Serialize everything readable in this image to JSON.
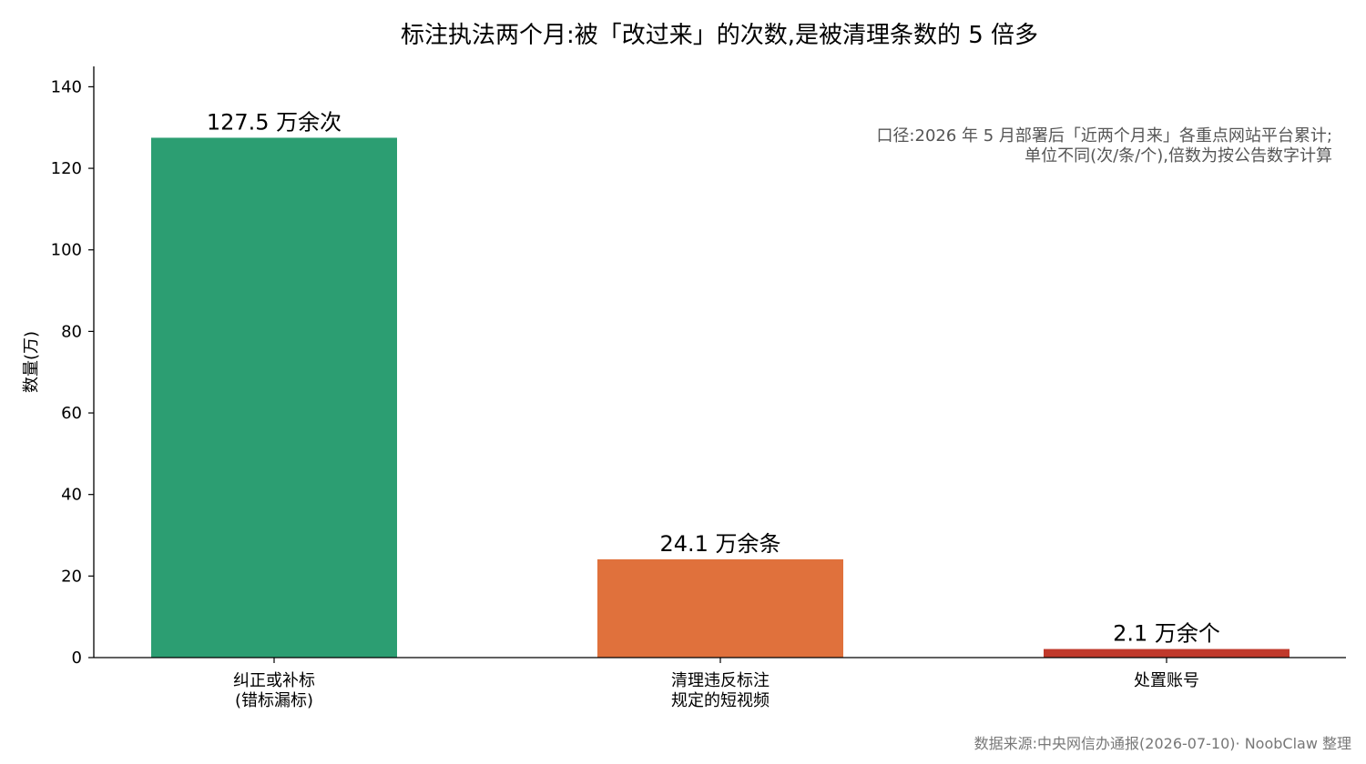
{
  "chart_data": {
    "type": "bar",
    "title": "标注执法两个月:被「改过来」的次数,是被清理条数的 5 倍多",
    "xlabel": "",
    "ylabel": "数量(万)",
    "ylim": [
      0,
      145
    ],
    "yticks": [
      0,
      20,
      40,
      60,
      80,
      100,
      120,
      140
    ],
    "grid": false,
    "categories": [
      [
        "纠正或补标",
        "(错标漏标)"
      ],
      [
        "清理违反标注",
        "规定的短视频"
      ],
      [
        "处置账号"
      ]
    ],
    "values": [
      127.5,
      24.1,
      2.1
    ],
    "data_labels": [
      "127.5 万余次",
      "24.1 万余条",
      "2.1 万余个"
    ],
    "colors": [
      "#2c9e72",
      "#e0713c",
      "#c0392b"
    ],
    "annotation": [
      "口径:2026 年 5 月部署后「近两个月来」各重点网站平台累计;",
      "单位不同(次/条/个),倍数为按公告数字计算"
    ],
    "source": "数据来源:中央网信办通报(2026-07-10)· NoobClaw 整理"
  }
}
